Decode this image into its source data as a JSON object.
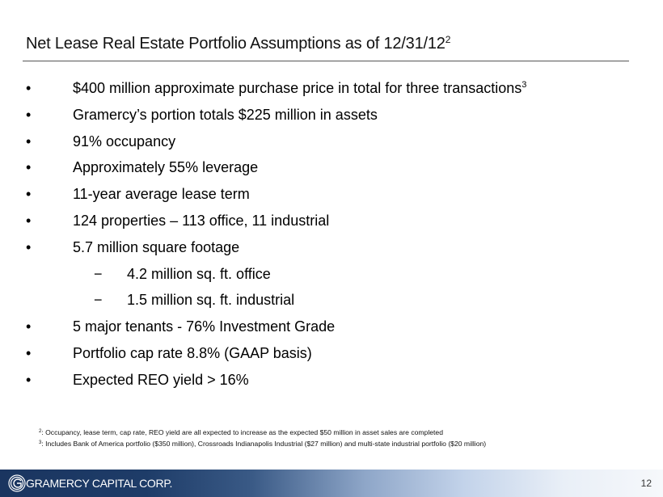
{
  "title": {
    "text": "Net Lease Real Estate Portfolio Assumptions as of 12/31/12",
    "sup": "2"
  },
  "bullets": [
    {
      "text": "$400 million approximate purchase price in total for three transactions",
      "sup": "3",
      "level": 1
    },
    {
      "text": "Gramercy’s portion totals $225 million in assets",
      "level": 1
    },
    {
      "text": "91% occupancy",
      "level": 1
    },
    {
      "text": "Approximately 55% leverage",
      "level": 1
    },
    {
      "text": "11-year average lease term",
      "level": 1
    },
    {
      "text": "124 properties – 113 office, 11 industrial",
      "level": 1
    },
    {
      "text": "5.7 million square footage",
      "level": 1
    },
    {
      "text": "4.2 million sq. ft. office",
      "level": 2
    },
    {
      "text": "1.5 million sq. ft. industrial",
      "level": 2
    },
    {
      "text": "5 major tenants - 76% Investment Grade",
      "level": 1
    },
    {
      "text": "Portfolio cap rate 8.8% (GAAP basis)",
      "level": 1
    },
    {
      "text": "Expected REO yield > 16%",
      "level": 1
    }
  ],
  "markers": {
    "level1": "•",
    "level2": "−"
  },
  "footnotes": [
    {
      "sup": "2",
      "text": ": Occupancy, lease term, cap rate, REO yield are all expected to increase as the expected $50 million in asset sales are completed"
    },
    {
      "sup": "3",
      "text": ": Includes Bank of America portfolio ($350 million), Crossroads Indianapolis Industrial ($27 million) and multi-state industrial portfolio ($20 million)"
    }
  ],
  "footer": {
    "company": "GRAMERCY CAPITAL CORP.",
    "page": "12",
    "logo_icon": "gramercy-g-logo-icon",
    "colors": {
      "dark": "#1a3560",
      "light": "#f6f8fb"
    }
  }
}
